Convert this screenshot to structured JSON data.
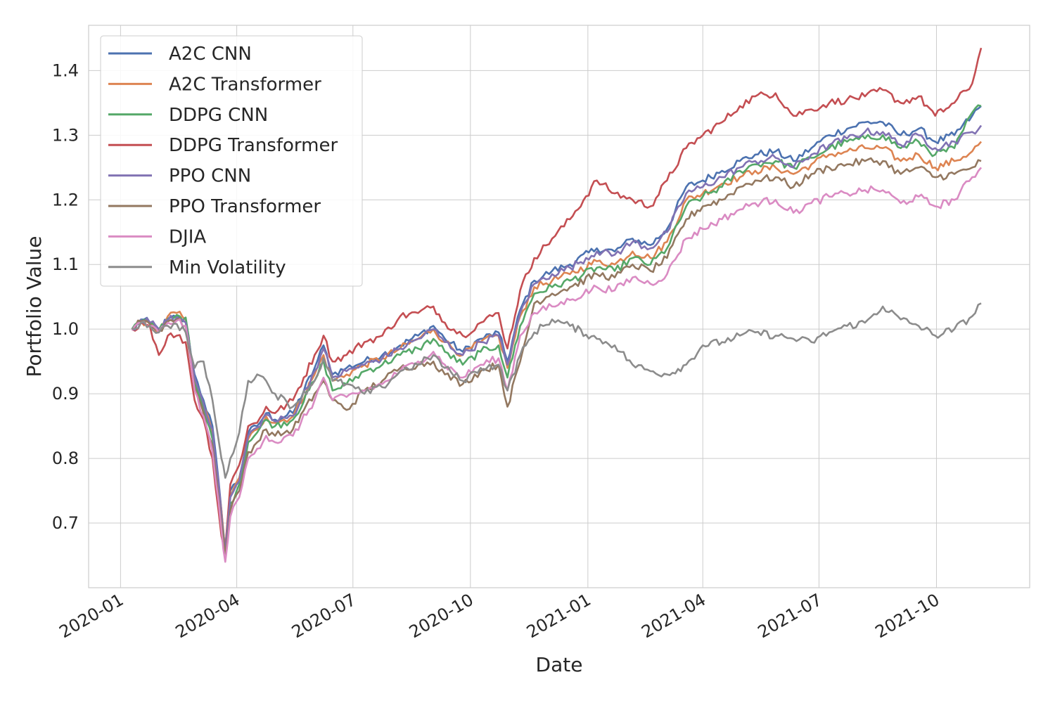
{
  "chart_data": {
    "type": "line",
    "title": "",
    "xlabel": "Date",
    "ylabel": "Portfolio Value",
    "x_ticks": [
      "2020-01",
      "2020-04",
      "2020-07",
      "2020-10",
      "2021-01",
      "2021-04",
      "2021-07",
      "2021-10"
    ],
    "y_ticks": [
      "0.7",
      "0.8",
      "0.9",
      "1.0",
      "1.1",
      "1.2",
      "1.3",
      "1.4"
    ],
    "xlim": [
      "2019-12-07",
      "2021-12-13"
    ],
    "ylim": [
      0.6,
      1.47
    ],
    "grid": true,
    "legend_position": "upper left",
    "dates": [
      "2020-01-10",
      "2020-01-17",
      "2020-01-24",
      "2020-01-31",
      "2020-02-07",
      "2020-02-14",
      "2020-02-21",
      "2020-02-28",
      "2020-03-06",
      "2020-03-13",
      "2020-03-20",
      "2020-03-23",
      "2020-03-27",
      "2020-04-03",
      "2020-04-10",
      "2020-04-17",
      "2020-04-24",
      "2020-05-01",
      "2020-05-15",
      "2020-06-01",
      "2020-06-08",
      "2020-06-15",
      "2020-06-26",
      "2020-07-10",
      "2020-07-24",
      "2020-08-07",
      "2020-08-21",
      "2020-09-02",
      "2020-09-11",
      "2020-09-25",
      "2020-10-09",
      "2020-10-23",
      "2020-10-30",
      "2020-11-09",
      "2020-11-20",
      "2020-12-04",
      "2020-12-18",
      "2021-01-08",
      "2021-01-22",
      "2021-02-05",
      "2021-02-19",
      "2021-03-04",
      "2021-03-19",
      "2021-04-01",
      "2021-04-16",
      "2021-04-30",
      "2021-05-12",
      "2021-05-28",
      "2021-06-11",
      "2021-06-25",
      "2021-07-09",
      "2021-07-23",
      "2021-08-06",
      "2021-08-20",
      "2021-09-03",
      "2021-09-17",
      "2021-09-30",
      "2021-10-15",
      "2021-10-29",
      "2021-11-05"
    ],
    "series": [
      {
        "name": "A2C CNN",
        "color": "#4c72b0",
        "values": [
          1.0,
          1.015,
          1.01,
          1.0,
          1.015,
          1.018,
          1.012,
          0.93,
          0.89,
          0.85,
          0.72,
          0.66,
          0.75,
          0.77,
          0.84,
          0.85,
          0.87,
          0.86,
          0.87,
          0.94,
          0.975,
          0.93,
          0.94,
          0.95,
          0.96,
          0.975,
          0.99,
          1.005,
          0.985,
          0.965,
          0.985,
          0.995,
          0.95,
          1.03,
          1.075,
          1.09,
          1.1,
          1.125,
          1.12,
          1.14,
          1.13,
          1.155,
          1.22,
          1.23,
          1.245,
          1.26,
          1.27,
          1.275,
          1.26,
          1.28,
          1.3,
          1.31,
          1.32,
          1.32,
          1.3,
          1.31,
          1.29,
          1.3,
          1.33,
          1.345
        ]
      },
      {
        "name": "A2C Transformer",
        "color": "#dd8452",
        "values": [
          1.0,
          1.012,
          1.008,
          0.998,
          1.02,
          1.025,
          1.015,
          0.92,
          0.88,
          0.84,
          0.72,
          0.65,
          0.74,
          0.77,
          0.83,
          0.845,
          0.865,
          0.855,
          0.865,
          0.93,
          0.96,
          0.92,
          0.93,
          0.945,
          0.955,
          0.97,
          0.985,
          1.0,
          0.98,
          0.96,
          0.98,
          0.99,
          0.94,
          1.02,
          1.065,
          1.075,
          1.085,
          1.105,
          1.1,
          1.12,
          1.11,
          1.135,
          1.2,
          1.21,
          1.225,
          1.235,
          1.245,
          1.25,
          1.24,
          1.255,
          1.27,
          1.275,
          1.28,
          1.28,
          1.26,
          1.27,
          1.25,
          1.26,
          1.275,
          1.29
        ]
      },
      {
        "name": "DDPG CNN",
        "color": "#55a868",
        "values": [
          1.0,
          1.013,
          1.009,
          0.999,
          1.016,
          1.022,
          1.018,
          0.915,
          0.875,
          0.83,
          0.71,
          0.65,
          0.73,
          0.76,
          0.825,
          0.84,
          0.86,
          0.85,
          0.86,
          0.92,
          0.95,
          0.905,
          0.915,
          0.935,
          0.945,
          0.96,
          0.97,
          0.985,
          0.965,
          0.945,
          0.965,
          0.975,
          0.925,
          1.005,
          1.055,
          1.065,
          1.075,
          1.095,
          1.09,
          1.11,
          1.1,
          1.125,
          1.19,
          1.205,
          1.22,
          1.245,
          1.255,
          1.26,
          1.25,
          1.265,
          1.28,
          1.29,
          1.295,
          1.3,
          1.28,
          1.29,
          1.27,
          1.28,
          1.335,
          1.345
        ]
      },
      {
        "name": "DDPG Transformer",
        "color": "#c44e52",
        "values": [
          1.0,
          1.01,
          1.005,
          0.96,
          0.99,
          0.99,
          0.98,
          0.89,
          0.86,
          0.8,
          0.68,
          0.66,
          0.76,
          0.79,
          0.85,
          0.855,
          0.88,
          0.87,
          0.89,
          0.96,
          0.99,
          0.95,
          0.96,
          0.98,
          0.99,
          1.02,
          1.025,
          1.035,
          1.01,
          0.99,
          1.01,
          1.025,
          0.97,
          1.06,
          1.11,
          1.14,
          1.17,
          1.23,
          1.21,
          1.2,
          1.19,
          1.23,
          1.28,
          1.3,
          1.32,
          1.345,
          1.36,
          1.365,
          1.33,
          1.34,
          1.35,
          1.355,
          1.36,
          1.37,
          1.35,
          1.36,
          1.33,
          1.35,
          1.38,
          1.435
        ]
      },
      {
        "name": "PPO CNN",
        "color": "#8172b3",
        "values": [
          1.0,
          1.014,
          1.01,
          1.0,
          1.014,
          1.018,
          1.01,
          0.925,
          0.885,
          0.845,
          0.715,
          0.655,
          0.74,
          0.765,
          0.835,
          0.848,
          0.868,
          0.857,
          0.866,
          0.935,
          0.97,
          0.925,
          0.935,
          0.945,
          0.955,
          0.97,
          0.985,
          1.0,
          0.98,
          0.96,
          0.98,
          0.99,
          0.945,
          1.025,
          1.07,
          1.085,
          1.095,
          1.12,
          1.115,
          1.135,
          1.125,
          1.15,
          1.21,
          1.22,
          1.235,
          1.25,
          1.26,
          1.265,
          1.25,
          1.27,
          1.285,
          1.295,
          1.305,
          1.305,
          1.285,
          1.3,
          1.28,
          1.29,
          1.305,
          1.315
        ]
      },
      {
        "name": "PPO Transformer",
        "color": "#937860",
        "values": [
          1.0,
          1.012,
          1.008,
          0.998,
          1.012,
          1.015,
          1.005,
          0.91,
          0.87,
          0.82,
          0.7,
          0.65,
          0.72,
          0.75,
          0.81,
          0.825,
          0.845,
          0.835,
          0.845,
          0.9,
          0.92,
          0.89,
          0.875,
          0.905,
          0.92,
          0.94,
          0.945,
          0.95,
          0.93,
          0.915,
          0.935,
          0.945,
          0.88,
          0.95,
          1.04,
          1.055,
          1.065,
          1.085,
          1.08,
          1.1,
          1.09,
          1.11,
          1.17,
          1.19,
          1.2,
          1.22,
          1.23,
          1.235,
          1.22,
          1.24,
          1.25,
          1.255,
          1.26,
          1.26,
          1.24,
          1.25,
          1.235,
          1.24,
          1.25,
          1.26
        ]
      },
      {
        "name": "DJIA",
        "color": "#da8bc3",
        "values": [
          0.998,
          1.01,
          1.005,
          0.995,
          1.01,
          1.013,
          1.005,
          0.905,
          0.865,
          0.81,
          0.69,
          0.64,
          0.71,
          0.74,
          0.8,
          0.815,
          0.835,
          0.825,
          0.835,
          0.89,
          0.925,
          0.89,
          0.895,
          0.905,
          0.915,
          0.935,
          0.95,
          0.965,
          0.945,
          0.925,
          0.945,
          0.955,
          0.905,
          0.99,
          1.025,
          1.035,
          1.045,
          1.065,
          1.06,
          1.08,
          1.07,
          1.085,
          1.14,
          1.155,
          1.17,
          1.185,
          1.195,
          1.2,
          1.18,
          1.195,
          1.205,
          1.21,
          1.215,
          1.215,
          1.195,
          1.205,
          1.19,
          1.2,
          1.235,
          1.25
        ]
      },
      {
        "name": "Min Volatility",
        "color": "#8c8c8c",
        "values": [
          1.0,
          1.01,
          1.005,
          0.995,
          1.005,
          1.008,
          0.995,
          0.94,
          0.95,
          0.89,
          0.8,
          0.77,
          0.8,
          0.84,
          0.92,
          0.93,
          0.92,
          0.9,
          0.88,
          0.92,
          0.955,
          0.92,
          0.915,
          0.9,
          0.91,
          0.935,
          0.945,
          0.96,
          0.94,
          0.92,
          0.94,
          0.945,
          0.905,
          0.96,
          0.995,
          1.015,
          1.005,
          0.985,
          0.975,
          0.945,
          0.935,
          0.93,
          0.945,
          0.975,
          0.98,
          0.99,
          0.995,
          0.99,
          0.985,
          0.98,
          0.995,
          1.005,
          1.01,
          1.035,
          1.015,
          1.005,
          0.99,
          1.0,
          1.02,
          1.04
        ]
      }
    ]
  }
}
